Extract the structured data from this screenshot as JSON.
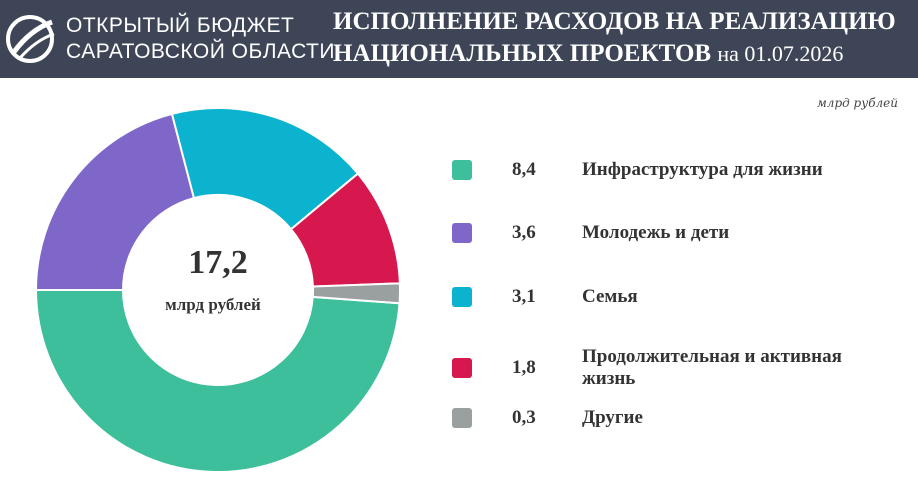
{
  "header": {
    "logo_line1": "ОТКРЫТЫЙ БЮДЖЕТ",
    "logo_line2": "САРАТОВСКОЙ ОБЛАСТИ",
    "title_line1": "ИСПОЛНЕНИЕ РАСХОДОВ НА РЕАЛИЗАЦИЮ",
    "title_line2": "НАЦИОНАЛЬНЫХ ПРОЕКТОВ",
    "date": "на 01.07.2026"
  },
  "chart_data": {
    "type": "donut",
    "unit": "млрд рублей",
    "center_value": "17,2",
    "center_unit": "млрд рублей",
    "categories": [
      "Инфраструктура для жизни",
      "Молодежь и дети",
      "Семья",
      "Продолжительная  и активная жизнь",
      "Другие"
    ],
    "values": [
      8.4,
      3.6,
      3.1,
      1.8,
      0.3
    ],
    "value_labels": [
      "8,4",
      "3,6",
      "3,1",
      "1,8",
      "0,3"
    ],
    "colors": [
      "#3dbf9c",
      "#7f66c9",
      "#0bb3cf",
      "#d6184e",
      "#9a9fa0"
    ]
  }
}
